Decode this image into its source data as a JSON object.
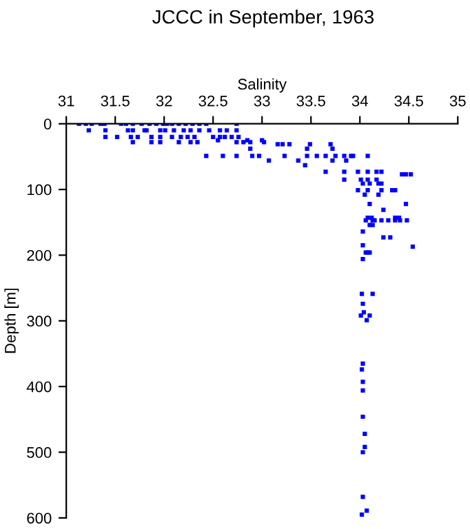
{
  "chart_data": {
    "type": "scatter",
    "title": "JCCC in September, 1963",
    "xlabel": "Salinity",
    "ylabel": "Depth [m]",
    "xlim": [
      31,
      35
    ],
    "xticks": [
      31,
      31.5,
      32,
      32.5,
      33,
      33.5,
      34,
      34.5,
      35
    ],
    "ylim": [
      600,
      0
    ],
    "yticks": [
      0,
      100,
      200,
      300,
      400,
      500,
      600
    ],
    "marker": "square",
    "grid": false,
    "legend": false,
    "series": [
      {
        "color": "#0000ff",
        "x": [
          31.13,
          31.2,
          31.26,
          31.35,
          31.39,
          31.56,
          31.61,
          31.68,
          31.77,
          31.85,
          31.92,
          31.99,
          32.03,
          32.08,
          32.15,
          32.22,
          32.29,
          32.36,
          32.43,
          32.74,
          31.23,
          31.4,
          31.63,
          31.68,
          31.8,
          31.82,
          31.96,
          32.01,
          32.1,
          32.2,
          32.27,
          32.36,
          32.46,
          32.57,
          32.64,
          32.74,
          31.4,
          31.52,
          31.66,
          31.73,
          31.87,
          31.96,
          32.08,
          32.17,
          32.24,
          32.31,
          32.5,
          32.57,
          32.62,
          32.69,
          32.76,
          31.68,
          31.87,
          31.96,
          32.15,
          32.27,
          32.34,
          32.74,
          32.81,
          32.88,
          33.02,
          32.55,
          32.85,
          33.0,
          33.16,
          33.21,
          33.28,
          33.49,
          33.7,
          32.88,
          33.46,
          33.72,
          32.43,
          32.6,
          32.74,
          32.9,
          32.97,
          33.23,
          33.46,
          33.56,
          33.65,
          33.75,
          33.84,
          33.91,
          33.93,
          34.08,
          33.07,
          33.37,
          33.72,
          33.86,
          33.44,
          33.65,
          33.84,
          33.98,
          34.08,
          34.17,
          34.22,
          34.43,
          34.47,
          34.52,
          33.84,
          34.01,
          34.08,
          34.17,
          34.03,
          34.1,
          34.19,
          34.22,
          33.98,
          34.08,
          34.22,
          34.33,
          34.36,
          34.05,
          34.19,
          34.1,
          34.47,
          34.24,
          34.08,
          34.12,
          34.36,
          34.4,
          34.06,
          34.13,
          34.15,
          34.22,
          34.29,
          34.36,
          34.41,
          34.48,
          34.1,
          34.13,
          34.03,
          34.24,
          34.31,
          34.03,
          34.54,
          34.06,
          34.08,
          34.1,
          34.03,
          34.02,
          34.13,
          34.03,
          34.04,
          34.01,
          34.1,
          34.07,
          34.03,
          34.02,
          34.03,
          34.03,
          34.03,
          34.05,
          34.05,
          34.03,
          34.03,
          34.07,
          34.02
        ],
        "values": [
          0,
          0,
          0,
          0,
          0,
          0,
          0,
          0,
          0,
          0,
          0,
          0,
          0,
          0,
          0,
          0,
          0,
          0,
          0,
          0,
          10,
          10,
          10,
          10,
          10,
          10,
          10,
          10,
          10,
          10,
          10,
          10,
          10,
          10,
          10,
          10,
          20,
          20,
          20,
          20,
          20,
          20,
          20,
          20,
          20,
          20,
          20,
          20,
          20,
          20,
          20,
          28,
          28,
          28,
          28,
          28,
          28,
          28,
          28,
          28,
          28,
          25,
          25,
          25,
          31,
          31,
          31,
          31,
          31,
          38,
          38,
          38,
          49,
          49,
          49,
          49,
          49,
          49,
          49,
          49,
          49,
          49,
          49,
          49,
          49,
          49,
          56,
          56,
          56,
          56,
          63,
          73,
          73,
          73,
          73,
          73,
          73,
          77,
          77,
          77,
          85,
          85,
          85,
          85,
          91,
          91,
          91,
          91,
          101,
          101,
          101,
          101,
          101,
          108,
          108,
          122,
          122,
          131,
          143,
          143,
          143,
          143,
          147,
          147,
          147,
          147,
          147,
          147,
          147,
          147,
          154,
          154,
          164,
          173,
          173,
          185,
          187,
          196,
          196,
          196,
          206,
          259,
          259,
          274,
          287,
          292,
          292,
          299,
          365,
          374,
          393,
          406,
          446,
          472,
          492,
          500,
          568,
          589,
          595
        ]
      }
    ]
  }
}
